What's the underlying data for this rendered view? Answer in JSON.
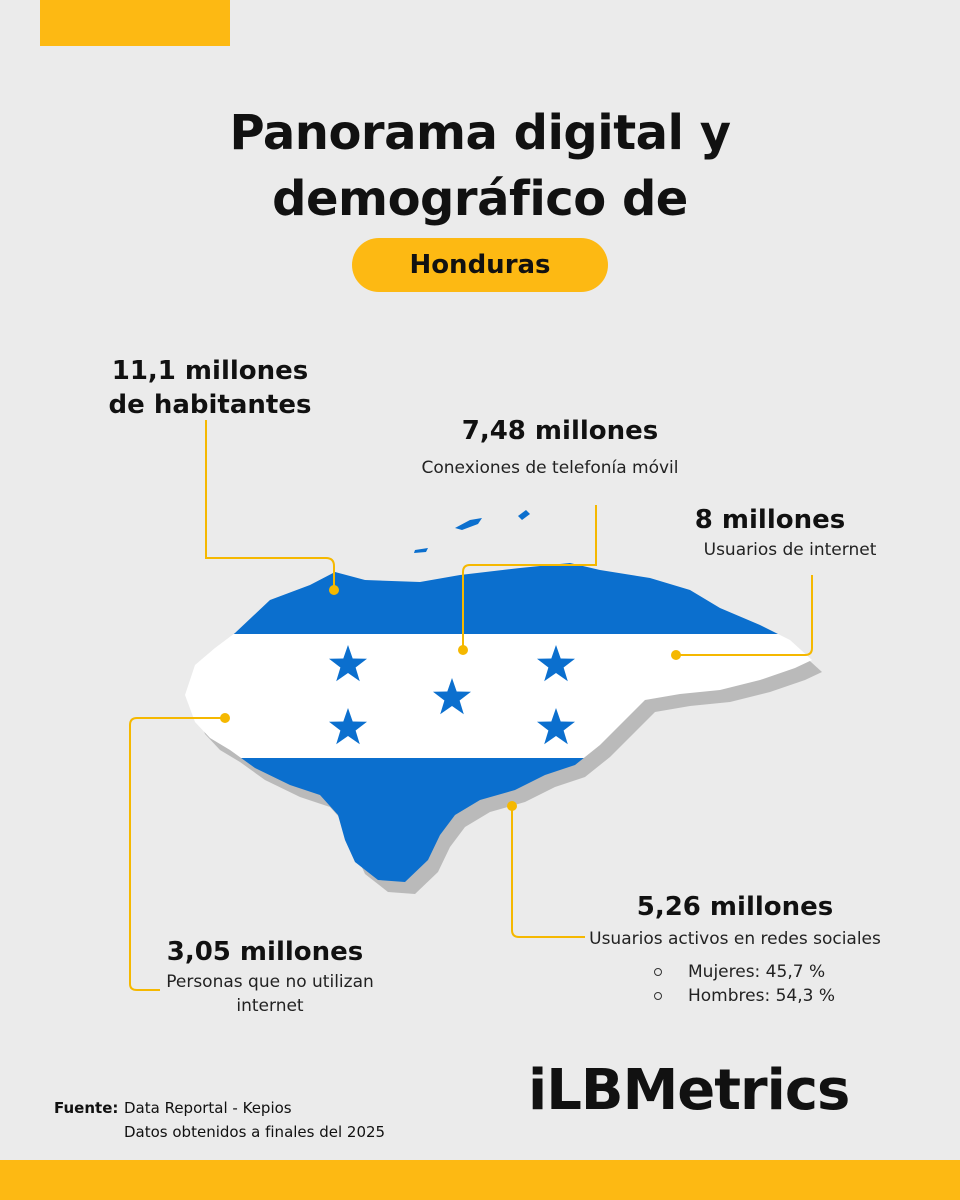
{
  "header": {
    "title": "Panorama digital y demográfico de",
    "country": "Honduras"
  },
  "stats": [
    {
      "value": "11,1 millones de habitantes"
    },
    {
      "value": "7,48 millones",
      "label": "Conexiones de telefonía móvil"
    },
    {
      "value": "8 millones",
      "label": "Usuarios de internet"
    },
    {
      "value": "3,05 millones",
      "label": "Personas que no utilizan internet"
    },
    {
      "value": "5,26 millones",
      "label": "Usuarios activos en redes sociales",
      "breakdown": [
        "Mujeres: 45,7 %",
        "Hombres: 54,3 %"
      ]
    }
  ],
  "footer": {
    "source_label": "Fuente:",
    "source_lines": [
      "Data Reportal - Kepios",
      "Datos obtenidos a finales del 2025"
    ],
    "brand": "iLBMetrics"
  }
}
